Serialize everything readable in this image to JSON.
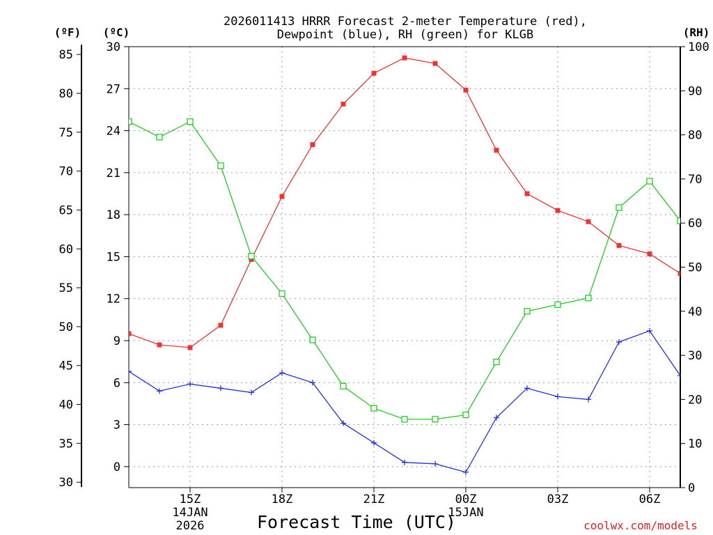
{
  "chart_data": {
    "type": "line",
    "title_line1": "2026011413 HRRR Forecast 2-meter Temperature (red),",
    "title_line2": "Dewpoint (blue), RH (green) for KLGB",
    "xlabel": "Forecast Time (UTC)",
    "credit": "coolwx.com/models",
    "units": {
      "fahrenheit": "(ºF)",
      "celsius": "(ºC)",
      "rh": "(RH)"
    },
    "grid": true,
    "x_hours": [
      13,
      14,
      15,
      16,
      17,
      18,
      19,
      20,
      21,
      22,
      23,
      24,
      25,
      26,
      27,
      28,
      29,
      30,
      31
    ],
    "xlim": [
      13,
      31
    ],
    "x_ticks": [
      {
        "hour": 15,
        "label": "15Z",
        "date1": "14JAN",
        "date2": "2026"
      },
      {
        "hour": 18,
        "label": "18Z",
        "date1": "",
        "date2": ""
      },
      {
        "hour": 21,
        "label": "21Z",
        "date1": "",
        "date2": ""
      },
      {
        "hour": 24,
        "label": "00Z",
        "date1": "15JAN",
        "date2": ""
      },
      {
        "hour": 27,
        "label": "03Z",
        "date1": "",
        "date2": ""
      },
      {
        "hour": 30,
        "label": "06Z",
        "date1": "",
        "date2": ""
      }
    ],
    "left_axis_c": {
      "min": -1.5,
      "max": 30,
      "ticks": [
        "0",
        "3",
        "6",
        "9",
        "12",
        "15",
        "18",
        "21",
        "24",
        "27",
        "30"
      ]
    },
    "left_axis_f": {
      "ticks": [
        "30",
        "35",
        "40",
        "45",
        "50",
        "55",
        "60",
        "65",
        "70",
        "75",
        "80",
        "85"
      ]
    },
    "right_axis_rh": {
      "min": 0,
      "max": 100,
      "ticks": [
        "0",
        "10",
        "20",
        "30",
        "40",
        "50",
        "60",
        "70",
        "80",
        "90",
        "100"
      ]
    },
    "series": [
      {
        "name": "2-meter Temperature",
        "unit": "C",
        "color": "#ee3333",
        "marker": "filled-square",
        "values": [
          9.5,
          8.7,
          8.5,
          10.1,
          14.8,
          19.3,
          23.0,
          25.9,
          28.1,
          29.2,
          28.8,
          26.9,
          22.6,
          19.5,
          18.3,
          17.5,
          15.8,
          15.2,
          13.8
        ]
      },
      {
        "name": "Dewpoint",
        "unit": "C",
        "color": "#2233dd",
        "marker": "plus",
        "values": [
          6.8,
          5.4,
          5.9,
          5.6,
          5.3,
          6.7,
          6.0,
          3.1,
          1.7,
          0.3,
          0.2,
          -0.4,
          3.5,
          5.6,
          5.0,
          4.8,
          8.9,
          9.7,
          6.5
        ]
      },
      {
        "name": "RH",
        "unit": "%",
        "color": "#22cc22",
        "marker": "open-square",
        "values": [
          83,
          79.5,
          83,
          73,
          52.5,
          44,
          33.5,
          23,
          18,
          15.5,
          15.5,
          16.5,
          28.5,
          40,
          41.5,
          43,
          63.5,
          69.5,
          60.5
        ]
      }
    ]
  }
}
